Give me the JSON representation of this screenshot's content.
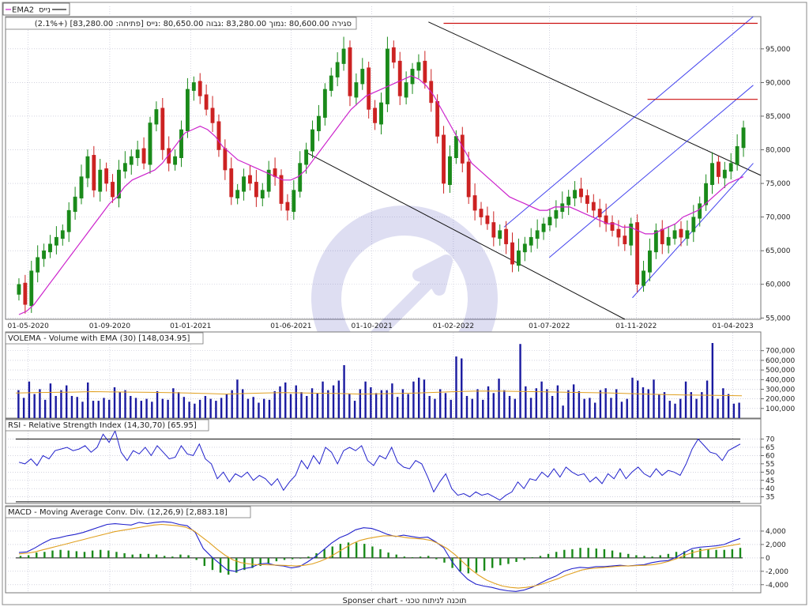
{
  "legend": {
    "series1": "נייס",
    "series2": "EMA2"
  },
  "ohlc_summary": "(2.1%+) [83,280.00 :סגירה 80,600.00 :נמוך 83,280.00 :גבוה 80,650.00 :נייס [פתיחה",
  "panels": {
    "volume_title": "VOLEMA - Volume with EMA (30) [148,034.95]",
    "rsi_title": "RSI - Relative Strength Index (14,30,70) [65.95]",
    "macd_title": "MACD - Moving Average Conv. Div. (12,26,9) [2,883.18]"
  },
  "footer": "Sponser chart - תוכנה לניתוח טכני",
  "colors": {
    "up": "#1a8a1a",
    "down": "#cc2222",
    "ema": "#cc22cc",
    "volume": "#1a1aa0",
    "volume_ema": "#e0a020",
    "rsi": "#2222cc",
    "macd": "#2222cc",
    "signal": "#e0a020",
    "histogram": "#1a8a1a",
    "channel_blue": "#4444ee",
    "resistance_red": "#cc1111",
    "trend_black": "#111111"
  },
  "chart_data": [
    {
      "type": "candlestick",
      "title": "",
      "x_tick_labels": [
        "01-05-2020",
        "01-09-2020",
        "01-01-2021",
        "01-06-2021",
        "01-10-2021",
        "01-02-2022",
        "01-07-2022",
        "01-11-2022",
        "01-04-2023"
      ],
      "y_tick_labels": [
        "55,000",
        "60,000",
        "65,000",
        "70,000",
        "75,000",
        "80,000",
        "85,000",
        "90,000",
        "95,000"
      ],
      "ylim": [
        54800,
        99800
      ],
      "close": [
        60000,
        57000,
        62000,
        64000,
        65000,
        66000,
        67000,
        68000,
        71000,
        73000,
        76000,
        79000,
        74000,
        77000,
        75000,
        73000,
        77000,
        78000,
        79000,
        80000,
        78000,
        84000,
        86000,
        80000,
        78000,
        79000,
        83000,
        89000,
        90000,
        88000,
        86000,
        84000,
        80000,
        77000,
        73000,
        74000,
        76000,
        75000,
        73000,
        74000,
        77000,
        76000,
        72000,
        71000,
        74000,
        78000,
        80000,
        83000,
        85000,
        89000,
        91000,
        93000,
        95000,
        88000,
        90000,
        92000,
        86000,
        84000,
        87000,
        95000,
        93000,
        88000,
        90000,
        92000,
        93000,
        90000,
        87000,
        82000,
        75000,
        79000,
        82000,
        78000,
        73000,
        71000,
        70000,
        69000,
        67000,
        68000,
        66000,
        63000,
        65000,
        66000,
        67000,
        68000,
        69000,
        70000,
        71000,
        72000,
        73000,
        74000,
        73000,
        72000,
        71000,
        70000,
        69000,
        68000,
        67000,
        66000,
        69000,
        60000,
        62000,
        65000,
        68000,
        66000,
        67000,
        68000,
        67000,
        68000,
        70000,
        72000,
        75000,
        78000,
        76000,
        77000,
        78000,
        80500,
        83280
      ],
      "ema": [
        55500,
        56000,
        57000,
        58500,
        60000,
        61500,
        63000,
        64500,
        66000,
        67500,
        69000,
        70500,
        72000,
        73000,
        74500,
        75500,
        76000,
        76500,
        77000,
        78000,
        79500,
        81000,
        82500,
        83000,
        83500,
        83000,
        82000,
        80500,
        79500,
        78500,
        78000,
        77500,
        77000,
        76500,
        76000,
        75500,
        75500,
        76000,
        77000,
        78500,
        80000,
        81500,
        83000,
        84500,
        86000,
        87000,
        88000,
        88500,
        89000,
        89500,
        90000,
        90500,
        91000,
        90500,
        89500,
        88000,
        86000,
        84000,
        82000,
        80000,
        78000,
        77000,
        76000,
        75000,
        74000,
        73000,
        72500,
        72000,
        71500,
        71000,
        71000,
        71500,
        71500,
        71500,
        71000,
        70500,
        70000,
        69500,
        69000,
        69000,
        68500,
        68500,
        68000,
        67500,
        67500,
        68000,
        68500,
        69000,
        70000,
        70500,
        71000,
        72000,
        73000,
        74000,
        75000,
        75500,
        76000
      ],
      "trendlines": [
        {
          "name": "upper-downtrend",
          "from": [
            0.56,
            99000
          ],
          "to": [
            1.0,
            76200
          ]
        },
        {
          "name": "lower-downtrend",
          "from": [
            0.4,
            79500
          ],
          "to": [
            0.82,
            54800
          ]
        }
      ],
      "channels": [
        {
          "from": [
            0.66,
            68500
          ],
          "to": [
            0.99,
            99800
          ]
        },
        {
          "from": [
            0.72,
            64000
          ],
          "to": [
            0.99,
            89600
          ]
        },
        {
          "from": [
            0.83,
            58000
          ],
          "to": [
            0.99,
            78000
          ]
        }
      ],
      "resistance_lines": [
        {
          "value": 98800,
          "x_start": 0.58,
          "x_end": 1.0
        },
        {
          "value": 87500,
          "x_start": 0.85,
          "x_end": 1.0
        }
      ]
    },
    {
      "type": "bar",
      "title": "VOLEMA - Volume with EMA (30) [148,034.95]",
      "y_tick_labels": [
        "100,000",
        "200,000",
        "300,000",
        "400,000",
        "500,000",
        "600,000",
        "700,000"
      ],
      "ylim": [
        0,
        780000
      ],
      "values": [
        290000,
        210000,
        380000,
        250000,
        300000,
        190000,
        360000,
        230000,
        290000,
        340000,
        230000,
        220000,
        170000,
        370000,
        180000,
        180000,
        210000,
        190000,
        320000,
        270000,
        290000,
        230000,
        210000,
        180000,
        200000,
        170000,
        280000,
        200000,
        190000,
        310000,
        270000,
        220000,
        170000,
        150000,
        190000,
        230000,
        200000,
        180000,
        210000,
        250000,
        290000,
        400000,
        300000,
        200000,
        220000,
        160000,
        200000,
        190000,
        280000,
        330000,
        370000,
        250000,
        340000,
        270000,
        230000,
        310000,
        260000,
        380000,
        290000,
        340000,
        390000,
        550000,
        250000,
        180000,
        300000,
        380000,
        320000,
        260000,
        290000,
        290000,
        360000,
        220000,
        300000,
        250000,
        380000,
        420000,
        400000,
        230000,
        200000,
        300000,
        260000,
        190000,
        640000,
        620000,
        230000,
        200000,
        300000,
        190000,
        330000,
        260000,
        410000,
        290000,
        230000,
        200000,
        770000,
        330000,
        210000,
        310000,
        380000,
        300000,
        230000,
        340000,
        130000,
        290000,
        350000,
        280000,
        200000,
        210000,
        160000,
        290000,
        310000,
        210000,
        300000,
        170000,
        200000,
        420000,
        390000,
        320000,
        300000,
        400000,
        250000,
        270000,
        180000,
        150000,
        200000,
        380000,
        270000,
        200000,
        270000,
        390000,
        780000,
        200000,
        310000,
        250000,
        150000,
        160000
      ],
      "ema_values": [
        260000,
        265000,
        268000,
        270000,
        275000,
        272000,
        270000,
        268000,
        265000,
        260000,
        255000,
        250000,
        255000,
        260000,
        265000,
        262000,
        258000,
        255000,
        250000,
        252000,
        256000,
        260000,
        268000,
        275000,
        280000,
        282000,
        278000,
        275000,
        272000,
        268000,
        265000,
        262000,
        255000,
        250000,
        245000,
        240000,
        238000,
        235000,
        232000
      ]
    },
    {
      "type": "line",
      "title": "RSI - Relative Strength Index (14,30,70) [65.95]",
      "y_tick_labels": [
        "35",
        "40",
        "45",
        "50",
        "55",
        "60",
        "65",
        "70"
      ],
      "ylim": [
        31,
        76
      ],
      "reference_lines": [
        70,
        32
      ],
      "values": [
        56,
        55,
        58,
        54,
        60,
        58,
        63,
        64,
        65,
        63,
        64,
        66,
        62,
        65,
        73,
        68,
        75,
        62,
        57,
        63,
        61,
        65,
        60,
        66,
        62,
        58,
        59,
        66,
        61,
        60,
        67,
        58,
        55,
        46,
        50,
        44,
        49,
        47,
        50,
        45,
        48,
        46,
        42,
        46,
        39,
        44,
        48,
        57,
        52,
        60,
        55,
        65,
        62,
        55,
        63,
        65,
        63,
        66,
        57,
        54,
        60,
        58,
        65,
        56,
        53,
        52,
        57,
        55,
        47,
        38,
        44,
        49,
        40,
        36,
        37,
        35,
        38,
        36,
        37,
        35,
        33,
        36,
        38,
        44,
        40,
        46,
        45,
        50,
        47,
        52,
        47,
        53,
        50,
        48,
        49,
        44,
        47,
        43,
        49,
        46,
        52,
        46,
        50,
        53,
        49,
        47,
        52,
        48,
        51,
        50,
        48,
        55,
        64,
        70,
        66,
        62,
        61,
        57,
        63,
        65,
        67
      ],
      "ylabel": ""
    },
    {
      "type": "line",
      "title": "MACD - Moving Average Conv. Div. (12,26,9) [2,883.18]",
      "y_tick_labels": [
        "-4,000",
        "-2,000",
        "0",
        "2,000",
        "4,000"
      ],
      "ylim": [
        -5200,
        6000
      ],
      "series": [
        {
          "name": "MACD",
          "values": [
            800,
            900,
            1500,
            2200,
            2800,
            3000,
            3300,
            3500,
            3800,
            4200,
            4600,
            5000,
            5100,
            5000,
            4900,
            5300,
            5100,
            5300,
            5400,
            5300,
            5000,
            4800,
            3800,
            1400,
            200,
            -800,
            -1800,
            -2000,
            -1600,
            -1400,
            -900,
            -800,
            -1100,
            -1200,
            -1500,
            -1300,
            -600,
            200,
            1200,
            2200,
            3000,
            3500,
            4200,
            4500,
            4400,
            4000,
            3500,
            3200,
            3400,
            3200,
            3000,
            3100,
            2400,
            1500,
            -500,
            -2000,
            -3200,
            -3900,
            -4200,
            -4400,
            -4700,
            -4900,
            -5000,
            -4800,
            -4400,
            -3800,
            -3200,
            -2700,
            -2000,
            -1600,
            -1400,
            -1500,
            -1300,
            -1300,
            -1200,
            -1100,
            -1200,
            -1100,
            -1000,
            -700,
            -500,
            -400,
            100,
            800,
            1400,
            1600,
            1700,
            1800,
            2000,
            2500,
            2900
          ]
        },
        {
          "name": "Signal",
          "values": [
            600,
            700,
            900,
            1200,
            1500,
            1800,
            2100,
            2400,
            2700,
            3000,
            3300,
            3600,
            3900,
            4100,
            4300,
            4500,
            4700,
            4900,
            5000,
            4900,
            4800,
            4600,
            4100,
            3200,
            2300,
            1300,
            400,
            -300,
            -700,
            -900,
            -1000,
            -1000,
            -1050,
            -1100,
            -1150,
            -1200,
            -1100,
            -900,
            -500,
            0,
            700,
            1400,
            2100,
            2600,
            2900,
            3100,
            3300,
            3300,
            3200,
            3000,
            2900,
            2800,
            2600,
            2100,
            1400,
            500,
            -600,
            -1700,
            -2600,
            -3300,
            -3800,
            -4200,
            -4400,
            -4500,
            -4400,
            -4200,
            -3900,
            -3500,
            -3100,
            -2600,
            -2200,
            -1800,
            -1600,
            -1500,
            -1400,
            -1300,
            -1200,
            -1200,
            -1150,
            -1100,
            -1000,
            -800,
            -500,
            -100,
            400,
            800,
            1100,
            1300,
            1500,
            1700,
            1900,
            2100
          ]
        }
      ],
      "histogram": [
        300,
        400,
        800,
        900,
        1100,
        1200,
        1100,
        1000,
        900,
        1100,
        1200,
        1100,
        900,
        700,
        500,
        600,
        600,
        500,
        300,
        200,
        500,
        400,
        -300,
        -1200,
        -1800,
        -2200,
        -2500,
        -2200,
        -1800,
        -1500,
        -1200,
        -800,
        -500,
        -300,
        -200,
        -100,
        200,
        700,
        1300,
        1700,
        2100,
        2300,
        2300,
        2100,
        1700,
        1300,
        800,
        500,
        200,
        100,
        200,
        300,
        -200,
        -700,
        -1500,
        -2000,
        -2300,
        -2200,
        -1900,
        -1500,
        -1100,
        -900,
        -600,
        -300,
        100,
        300,
        600,
        900,
        1200,
        1300,
        1500,
        1500,
        1400,
        1300,
        1100,
        800,
        600,
        400,
        300,
        200,
        400,
        600,
        900,
        1000,
        1200,
        1400,
        1300,
        1200,
        1200,
        1300,
        1500
      ]
    }
  ]
}
